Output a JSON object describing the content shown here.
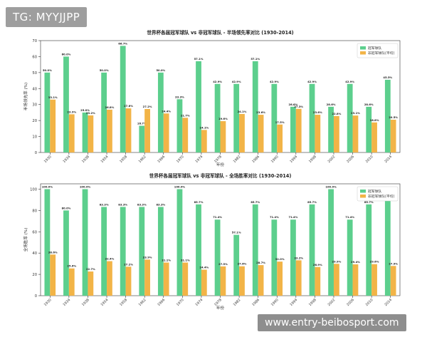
{
  "watermarks": {
    "top": "TG: MYYJJPP",
    "bottom": "www.entry-beibosport.com"
  },
  "colors": {
    "champion": "#5ccf8d",
    "non_champion": "#f2b447",
    "axis": "#333333",
    "grid": "#e6e6e6"
  },
  "chart_data": [
    {
      "type": "bar",
      "title": "世界杯各届冠军球队 vs 非冠军球队 - 半场领先率对比 (1930-2014)",
      "xlabel": "年份",
      "ylabel": "半场领先率 (%)",
      "ylim": [
        0,
        70
      ],
      "yticks": [
        0,
        10,
        20,
        30,
        40,
        50,
        60,
        70
      ],
      "grid": false,
      "legend_position": "top-right",
      "categories": [
        "1930",
        "1934",
        "1938",
        "1954",
        "1958",
        "1962",
        "1966",
        "1970",
        "1974",
        "1978",
        "1982",
        "1986",
        "1990",
        "1994",
        "1998",
        "2002",
        "2006",
        "2010",
        "2014"
      ],
      "series": [
        {
          "name": "冠军球队",
          "values": [
            50.0,
            60.0,
            25.0,
            50.0,
            66.7,
            16.7,
            50.0,
            33.3,
            57.1,
            42.9,
            42.9,
            57.1,
            42.9,
            28.6,
            42.9,
            28.6,
            42.9,
            28.6,
            45.5
          ]
        },
        {
          "name": "非冠军球队(平均)",
          "values": [
            33.1,
            23.9,
            23.2,
            26.8,
            27.6,
            27.2,
            24.4,
            21.7,
            14.1,
            19.6,
            24.1,
            23.6,
            17.5,
            27.3,
            23.6,
            22.8,
            23.1,
            18.8,
            20.5
          ]
        }
      ]
    },
    {
      "type": "bar",
      "title": "世界杯各届冠军球队 vs 非冠军球队 - 全场胜率对比 (1930-2014)",
      "xlabel": "年份",
      "ylabel": "全场胜率 (%)",
      "ylim": [
        0,
        105
      ],
      "yticks": [
        0,
        20,
        40,
        60,
        80,
        100
      ],
      "grid": false,
      "legend_position": "top-right",
      "categories": [
        "1930",
        "1934",
        "1938",
        "1954",
        "1958",
        "1962",
        "1966",
        "1970",
        "1974",
        "1978",
        "1982",
        "1986",
        "1990",
        "1994",
        "1998",
        "2002",
        "2006",
        "2010",
        "2014"
      ],
      "series": [
        {
          "name": "冠军球队",
          "values": [
            100.0,
            80.0,
            100.0,
            83.3,
            83.3,
            83.3,
            83.3,
            100.0,
            85.7,
            71.4,
            57.1,
            85.7,
            71.4,
            71.4,
            85.7,
            100.0,
            71.4,
            85.7,
            90.9
          ]
        },
        {
          "name": "非冠军球队(平均)",
          "values": [
            38.6,
            25.6,
            22.7,
            32.4,
            27.2,
            33.9,
            31.1,
            31.1,
            24.4,
            27.5,
            27.6,
            28.7,
            32.0,
            33.2,
            26.9,
            29.9,
            29.4,
            29.6,
            27.9
          ]
        }
      ]
    }
  ]
}
